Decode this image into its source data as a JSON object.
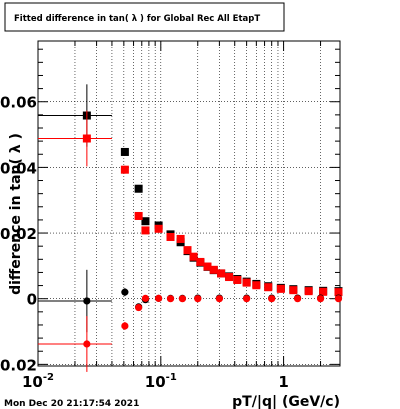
{
  "chart_data": {
    "type": "scatter",
    "title": "Fitted difference in tan( λ ) for Global Rec All EtapT",
    "xlabel": "pT/|q| (GeV/c)",
    "ylabel": "difference in tan( λ )",
    "x_scale": "log",
    "xlim": [
      0.01,
      2.88
    ],
    "ylim": [
      -0.0205,
      0.0785
    ],
    "grid": true,
    "x_tick_labels": [
      {
        "value": 0.01,
        "base": "10",
        "exp": "-2"
      },
      {
        "value": 0.1,
        "base": "10",
        "exp": "-1"
      },
      {
        "value": 1,
        "base": "1",
        "exp": ""
      }
    ],
    "y_ticks": [
      {
        "value": -0.02,
        "label": "-0.02"
      },
      {
        "value": 0,
        "label": "0"
      },
      {
        "value": 0.02,
        "label": "0.02"
      },
      {
        "value": 0.04,
        "label": "0.04"
      },
      {
        "value": 0.06,
        "label": "0.06"
      }
    ],
    "series": [
      {
        "color": "#000000",
        "marker": "square",
        "points": [
          {
            "x": 0.025,
            "y": 0.0558,
            "xerr": [
              0.01,
              0.04
            ],
            "yerr": 0.0095
          },
          {
            "x": 0.051,
            "y": 0.0447,
            "yerr": 0.0012
          },
          {
            "x": 0.066,
            "y": 0.0335
          },
          {
            "x": 0.075,
            "y": 0.0236
          },
          {
            "x": 0.096,
            "y": 0.0223
          },
          {
            "x": 0.12,
            "y": 0.0196
          },
          {
            "x": 0.145,
            "y": 0.0172
          },
          {
            "x": 0.165,
            "y": 0.0145
          },
          {
            "x": 0.185,
            "y": 0.0125
          },
          {
            "x": 0.21,
            "y": 0.011
          },
          {
            "x": 0.24,
            "y": 0.0097
          },
          {
            "x": 0.27,
            "y": 0.0087
          },
          {
            "x": 0.31,
            "y": 0.0077
          },
          {
            "x": 0.36,
            "y": 0.0068
          },
          {
            "x": 0.42,
            "y": 0.006
          },
          {
            "x": 0.5,
            "y": 0.0052
          },
          {
            "x": 0.6,
            "y": 0.0045
          },
          {
            "x": 0.75,
            "y": 0.0038
          },
          {
            "x": 0.95,
            "y": 0.0033
          },
          {
            "x": 1.2,
            "y": 0.0029
          },
          {
            "x": 1.6,
            "y": 0.0026
          },
          {
            "x": 2.1,
            "y": 0.0024
          },
          {
            "x": 2.8,
            "y": 0.0023
          }
        ]
      },
      {
        "color": "#ff0000",
        "marker": "square",
        "points": [
          {
            "x": 0.025,
            "y": 0.0488,
            "xerr": [
              0.01,
              0.04
            ],
            "yerr": 0.0085
          },
          {
            "x": 0.051,
            "y": 0.0393,
            "yerr": 0.0012
          },
          {
            "x": 0.066,
            "y": 0.0252
          },
          {
            "x": 0.075,
            "y": 0.0208
          },
          {
            "x": 0.096,
            "y": 0.0213
          },
          {
            "x": 0.12,
            "y": 0.0188
          },
          {
            "x": 0.145,
            "y": 0.0182
          },
          {
            "x": 0.165,
            "y": 0.0148
          },
          {
            "x": 0.185,
            "y": 0.0128
          },
          {
            "x": 0.21,
            "y": 0.0112
          },
          {
            "x": 0.24,
            "y": 0.0098
          },
          {
            "x": 0.27,
            "y": 0.0088
          },
          {
            "x": 0.31,
            "y": 0.0077
          },
          {
            "x": 0.36,
            "y": 0.0066
          },
          {
            "x": 0.42,
            "y": 0.0057
          },
          {
            "x": 0.5,
            "y": 0.0049
          },
          {
            "x": 0.6,
            "y": 0.0041
          },
          {
            "x": 0.75,
            "y": 0.0035
          },
          {
            "x": 0.95,
            "y": 0.003
          },
          {
            "x": 1.2,
            "y": 0.0026
          },
          {
            "x": 1.6,
            "y": 0.0023
          },
          {
            "x": 2.1,
            "y": 0.0021
          },
          {
            "x": 2.8,
            "y": 0.002
          }
        ]
      },
      {
        "color": "#000000",
        "marker": "circle",
        "points": [
          {
            "x": 0.025,
            "y": -0.0007,
            "xerr": [
              0.01,
              0.04
            ],
            "yerr": 0.0095
          },
          {
            "x": 0.051,
            "y": 0.002,
            "yerr": 0.0012
          },
          {
            "x": 0.066,
            "y": -0.0025
          },
          {
            "x": 0.075,
            "y": -0.0003
          },
          {
            "x": 0.096,
            "y": 0.0001
          },
          {
            "x": 0.12,
            "y": 0.0001
          },
          {
            "x": 0.15,
            "y": 0.0001
          },
          {
            "x": 0.2,
            "y": 0.0002
          },
          {
            "x": 0.3,
            "y": 0.0002
          },
          {
            "x": 0.5,
            "y": 0.0002
          },
          {
            "x": 0.8,
            "y": 0.0002
          },
          {
            "x": 1.3,
            "y": 0.0002
          },
          {
            "x": 2.0,
            "y": 0.0002
          },
          {
            "x": 2.8,
            "y": 0.0002
          }
        ]
      },
      {
        "color": "#ff0000",
        "marker": "circle",
        "points": [
          {
            "x": 0.025,
            "y": -0.0138,
            "xerr": [
              0.01,
              0.04
            ],
            "yerr": 0.0085
          },
          {
            "x": 0.051,
            "y": -0.0083,
            "yerr": 0.0012
          },
          {
            "x": 0.066,
            "y": -0.0027
          },
          {
            "x": 0.075,
            "y": 0.0001
          },
          {
            "x": 0.096,
            "y": 0.0001
          },
          {
            "x": 0.12,
            "y": 0.0
          },
          {
            "x": 0.15,
            "y": 0.0
          },
          {
            "x": 0.2,
            "y": 0.0
          },
          {
            "x": 0.3,
            "y": 0.0
          },
          {
            "x": 0.5,
            "y": 0.0
          },
          {
            "x": 0.8,
            "y": 0.0
          },
          {
            "x": 1.3,
            "y": 0.0
          },
          {
            "x": 2.0,
            "y": 0.0
          },
          {
            "x": 2.8,
            "y": 0.0
          }
        ]
      }
    ]
  },
  "timestamp": "Mon Dec 20 21:17:54 2021"
}
